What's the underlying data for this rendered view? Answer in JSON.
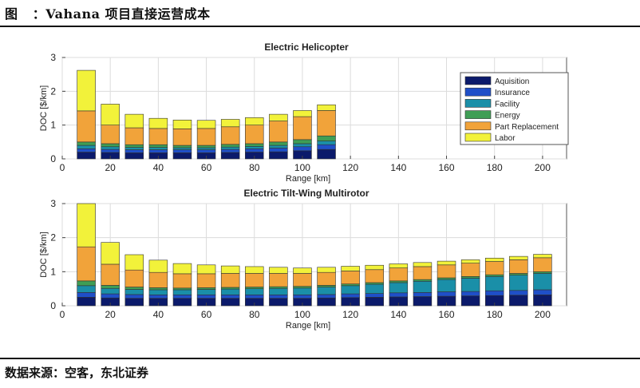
{
  "header": {
    "caption": "图   ：Vahana 项目直接运营成本"
  },
  "footer": {
    "source": "数据来源：空客，东北证券"
  },
  "legend": {
    "items": [
      {
        "name": "Aquisition",
        "color": "#0b1a6b"
      },
      {
        "name": "Insurance",
        "color": "#1f4fc8"
      },
      {
        "name": "Facility",
        "color": "#1a8fa8"
      },
      {
        "name": "Energy",
        "color": "#3f9e55"
      },
      {
        "name": "Part Replacement",
        "color": "#f1a33a"
      },
      {
        "name": "Labor",
        "color": "#f2f23a"
      }
    ]
  },
  "chart_data": [
    {
      "type": "bar",
      "stacked": true,
      "title": "Electric Helicopter",
      "xlabel": "Range [km]",
      "ylabel": "DOC [$/km]",
      "xlim": [
        0,
        210
      ],
      "ylim": [
        0,
        3
      ],
      "xticks": [
        0,
        20,
        40,
        60,
        80,
        100,
        120,
        140,
        160,
        180,
        200
      ],
      "yticks": [
        0,
        1,
        2,
        3
      ],
      "legend_position": "top-right",
      "x": [
        10,
        20,
        30,
        40,
        50,
        60,
        70,
        80,
        90,
        100,
        110
      ],
      "series": [
        {
          "name": "Aquisition",
          "values": [
            0.2,
            0.19,
            0.18,
            0.18,
            0.18,
            0.18,
            0.19,
            0.2,
            0.21,
            0.24,
            0.28
          ]
        },
        {
          "name": "Insurance",
          "values": [
            0.1,
            0.09,
            0.09,
            0.09,
            0.09,
            0.09,
            0.09,
            0.1,
            0.11,
            0.12,
            0.14
          ]
        },
        {
          "name": "Facility",
          "values": [
            0.1,
            0.08,
            0.07,
            0.07,
            0.06,
            0.06,
            0.07,
            0.07,
            0.08,
            0.09,
            0.11
          ]
        },
        {
          "name": "Energy",
          "values": [
            0.1,
            0.09,
            0.08,
            0.08,
            0.07,
            0.07,
            0.08,
            0.08,
            0.1,
            0.12,
            0.15
          ]
        },
        {
          "name": "Part Replacement",
          "values": [
            0.92,
            0.55,
            0.5,
            0.48,
            0.49,
            0.5,
            0.52,
            0.55,
            0.62,
            0.68,
            0.75
          ]
        },
        {
          "name": "Labor",
          "values": [
            1.2,
            0.62,
            0.4,
            0.3,
            0.26,
            0.24,
            0.22,
            0.22,
            0.2,
            0.18,
            0.17
          ]
        }
      ]
    },
    {
      "type": "bar",
      "stacked": true,
      "title": "Electric Tilt-Wing Multirotor",
      "xlabel": "Range [km]",
      "ylabel": "DOC [$/km]",
      "xlim": [
        0,
        210
      ],
      "ylim": [
        0,
        3
      ],
      "xticks": [
        0,
        20,
        40,
        60,
        80,
        100,
        120,
        140,
        160,
        180,
        200
      ],
      "yticks": [
        0,
        1,
        2,
        3
      ],
      "x": [
        10,
        20,
        30,
        40,
        50,
        60,
        70,
        80,
        90,
        100,
        110,
        120,
        130,
        140,
        150,
        160,
        170,
        180,
        190,
        200
      ],
      "series": [
        {
          "name": "Aquisition",
          "values": [
            0.25,
            0.23,
            0.22,
            0.22,
            0.22,
            0.22,
            0.22,
            0.22,
            0.22,
            0.22,
            0.23,
            0.24,
            0.25,
            0.26,
            0.27,
            0.28,
            0.29,
            0.3,
            0.31,
            0.32
          ]
        },
        {
          "name": "Insurance",
          "values": [
            0.14,
            0.12,
            0.11,
            0.1,
            0.1,
            0.1,
            0.1,
            0.1,
            0.1,
            0.1,
            0.1,
            0.11,
            0.11,
            0.12,
            0.12,
            0.13,
            0.13,
            0.14,
            0.14,
            0.15
          ]
        },
        {
          "name": "Facility",
          "values": [
            0.2,
            0.16,
            0.15,
            0.15,
            0.15,
            0.16,
            0.17,
            0.18,
            0.19,
            0.2,
            0.22,
            0.24,
            0.27,
            0.3,
            0.33,
            0.36,
            0.39,
            0.42,
            0.45,
            0.48
          ]
        },
        {
          "name": "Energy",
          "values": [
            0.14,
            0.09,
            0.07,
            0.06,
            0.05,
            0.05,
            0.05,
            0.05,
            0.05,
            0.05,
            0.05,
            0.05,
            0.05,
            0.05,
            0.05,
            0.05,
            0.05,
            0.05,
            0.05,
            0.05
          ]
        },
        {
          "name": "Part Replacement",
          "values": [
            1.0,
            0.62,
            0.5,
            0.45,
            0.42,
            0.41,
            0.41,
            0.4,
            0.39,
            0.38,
            0.38,
            0.38,
            0.38,
            0.38,
            0.38,
            0.38,
            0.39,
            0.39,
            0.4,
            0.41
          ]
        },
        {
          "name": "Labor",
          "values": [
            1.27,
            0.64,
            0.45,
            0.36,
            0.3,
            0.26,
            0.22,
            0.2,
            0.18,
            0.16,
            0.15,
            0.14,
            0.13,
            0.12,
            0.12,
            0.11,
            0.1,
            0.1,
            0.1,
            0.1
          ]
        }
      ]
    }
  ]
}
